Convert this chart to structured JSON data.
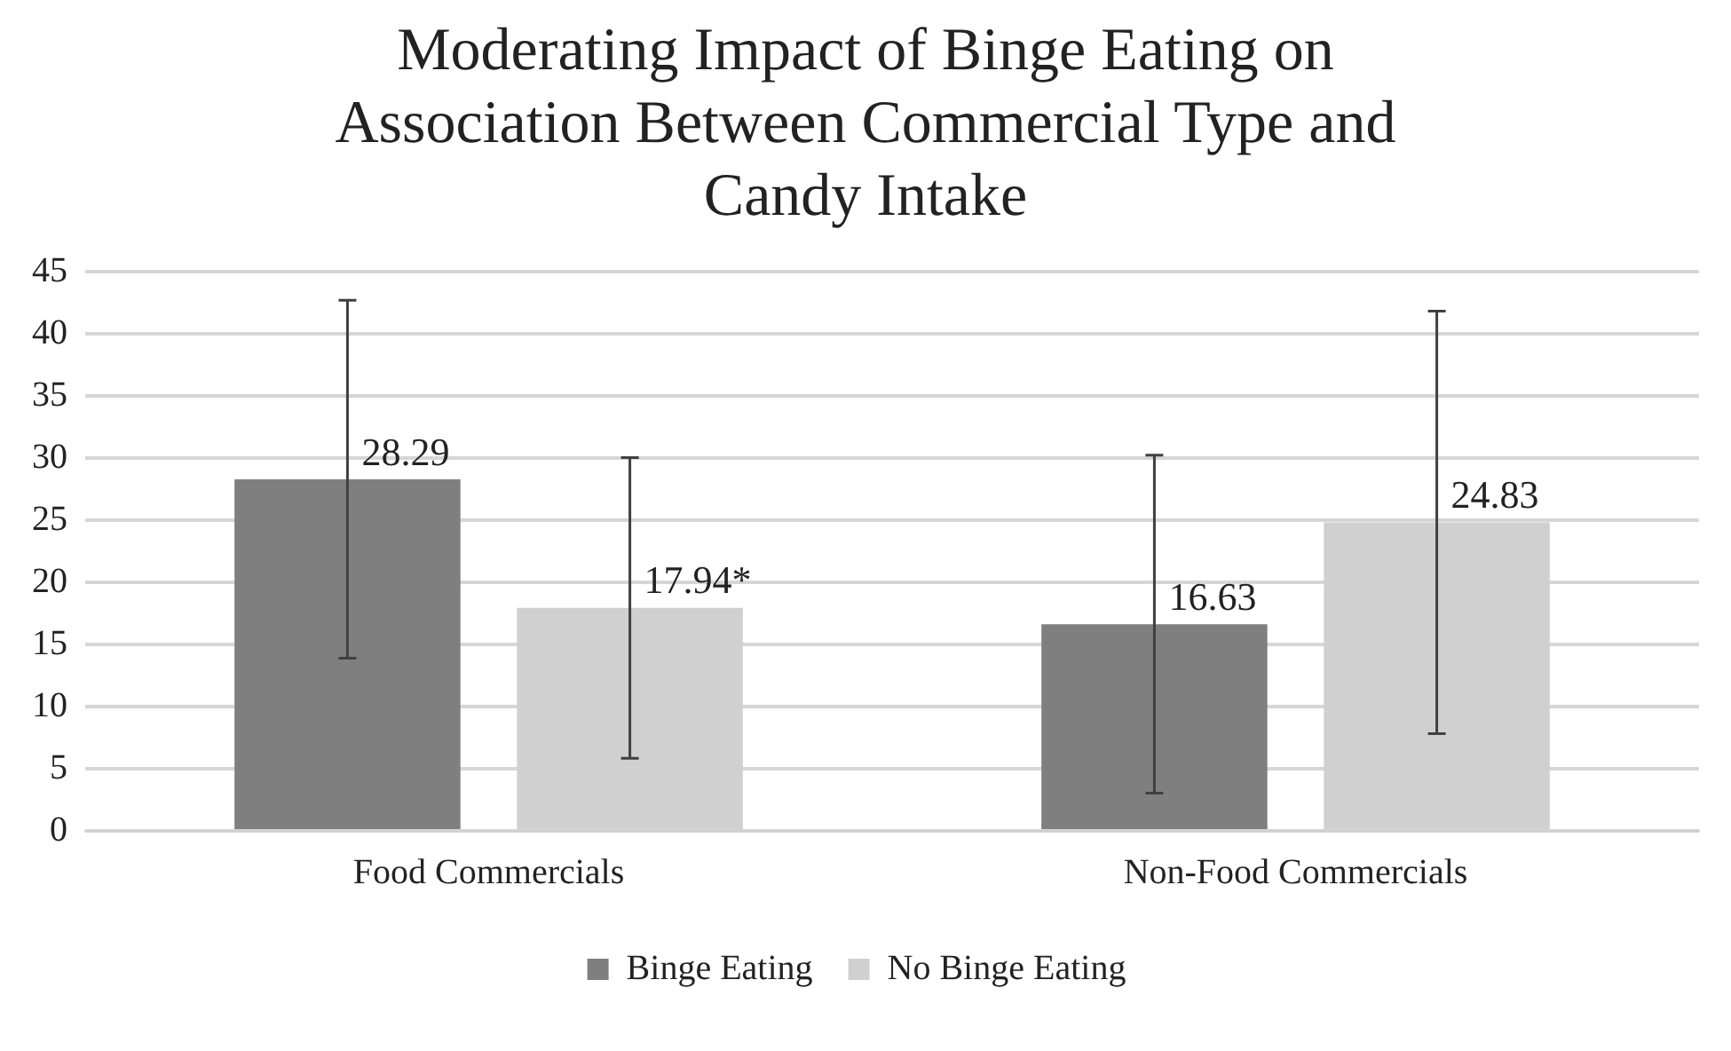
{
  "chart_data": {
    "type": "bar",
    "title": "Moderating Impact of Binge Eating on Association Between Commercial Type and Candy Intake",
    "categories": [
      "Food Commercials",
      "Non-Food Commercials"
    ],
    "series": [
      {
        "name": "Binge Eating",
        "color": "#7f7f7f",
        "values": [
          28.29,
          16.63
        ],
        "errors": [
          14.4,
          13.6
        ],
        "value_labels": [
          "28.29",
          "16.63"
        ]
      },
      {
        "name": "No Binge Eating",
        "color": "#d0d0d0",
        "values": [
          17.94,
          24.83
        ],
        "errors": [
          12.1,
          17.0
        ],
        "value_labels": [
          "17.94*",
          "24.83"
        ]
      }
    ],
    "ylim": [
      0,
      45
    ],
    "yticks": [
      0,
      5,
      10,
      15,
      20,
      25,
      30,
      35,
      40,
      45
    ],
    "grid": "y",
    "legend": "bottom"
  }
}
